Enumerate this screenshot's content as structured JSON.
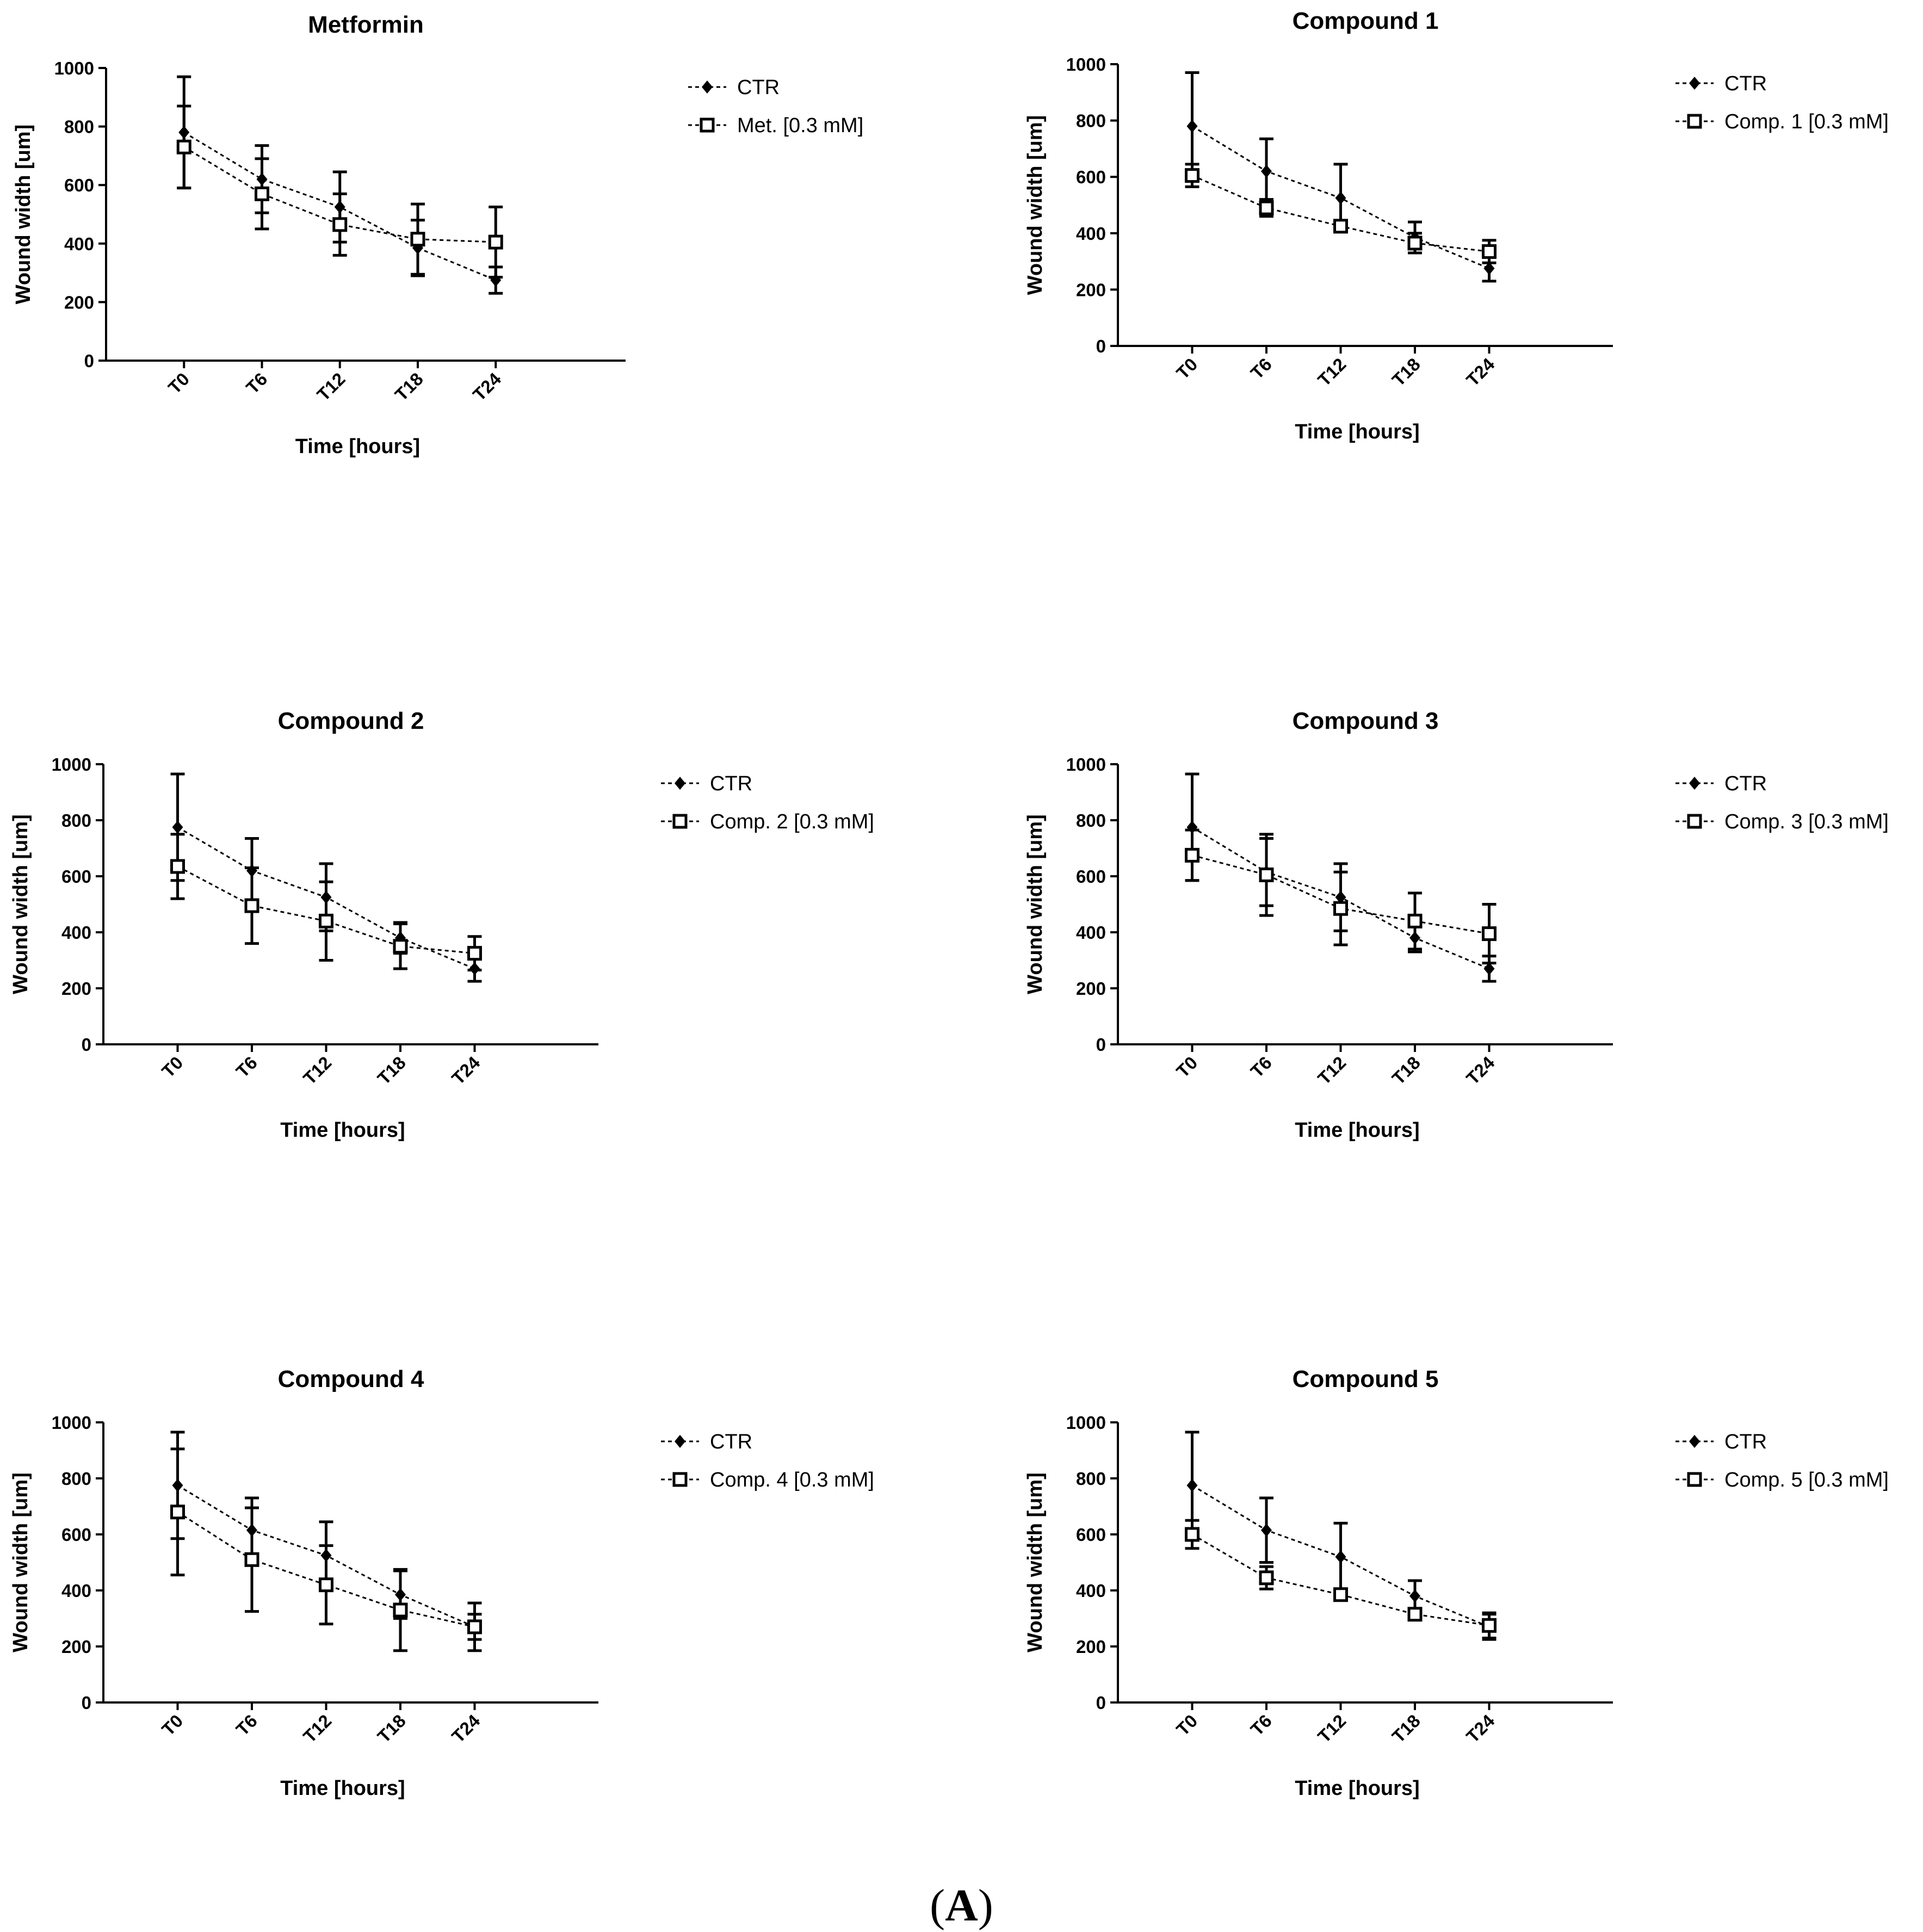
{
  "figure_label_prefix": "(",
  "figure_label_letter": "A",
  "figure_label_suffix": ")",
  "colors": {
    "line": "#000000",
    "background": "#ffffff"
  },
  "chart_data": [
    {
      "type": "line",
      "title": "Metformin",
      "xlabel": "Time [hours]",
      "ylabel": "Wound width [um]",
      "categories": [
        "T0",
        "T6",
        "T12",
        "T18",
        "T24"
      ],
      "ylim": [
        0,
        1000
      ],
      "yticks": [
        0,
        200,
        400,
        600,
        800,
        1000
      ],
      "grid": false,
      "legend": "right",
      "series": [
        {
          "name": "CTR",
          "marker": "diamond-filled",
          "values": [
            780,
            620,
            525,
            385,
            275
          ],
          "errors": [
            190,
            115,
            120,
            95,
            45
          ]
        },
        {
          "name": "Met. [0.3 mM]",
          "marker": "square-open",
          "values": [
            730,
            570,
            465,
            415,
            405
          ],
          "errors": [
            140,
            120,
            105,
            120,
            120
          ]
        }
      ]
    },
    {
      "type": "line",
      "title": "Compound 1",
      "xlabel": "Time [hours]",
      "ylabel": "Wound width [um]",
      "categories": [
        "T0",
        "T6",
        "T12",
        "T18",
        "T24"
      ],
      "ylim": [
        0,
        1000
      ],
      "yticks": [
        0,
        200,
        400,
        600,
        800,
        1000
      ],
      "grid": false,
      "legend": "right",
      "series": [
        {
          "name": "CTR",
          "marker": "diamond-filled",
          "values": [
            780,
            620,
            525,
            385,
            275
          ],
          "errors": [
            190,
            115,
            120,
            55,
            45
          ]
        },
        {
          "name": "Comp. 1 [0.3 mM]",
          "marker": "square-open",
          "values": [
            605,
            490,
            425,
            365,
            335
          ],
          "errors": [
            40,
            30,
            20,
            35,
            40
          ]
        }
      ]
    },
    {
      "type": "line",
      "title": "Compound 2",
      "xlabel": "Time [hours]",
      "ylabel": "Wound width [um]",
      "categories": [
        "T0",
        "T6",
        "T12",
        "T18",
        "T24"
      ],
      "ylim": [
        0,
        1000
      ],
      "yticks": [
        0,
        200,
        400,
        600,
        800,
        1000
      ],
      "grid": false,
      "legend": "right",
      "series": [
        {
          "name": "CTR",
          "marker": "diamond-filled",
          "values": [
            775,
            620,
            525,
            380,
            270
          ],
          "errors": [
            190,
            115,
            120,
            55,
            45
          ]
        },
        {
          "name": "Comp. 2 [0.3 mM]",
          "marker": "square-open",
          "values": [
            635,
            495,
            440,
            350,
            325
          ],
          "errors": [
            115,
            135,
            140,
            80,
            60
          ]
        }
      ]
    },
    {
      "type": "line",
      "title": "Compound 3",
      "xlabel": "Time [hours]",
      "ylabel": "Wound width [um]",
      "categories": [
        "T0",
        "T6",
        "T12",
        "T18",
        "T24"
      ],
      "ylim": [
        0,
        1000
      ],
      "yticks": [
        0,
        200,
        400,
        600,
        800,
        1000
      ],
      "grid": false,
      "legend": "right",
      "series": [
        {
          "name": "CTR",
          "marker": "diamond-filled",
          "values": [
            775,
            615,
            525,
            380,
            270
          ],
          "errors": [
            190,
            120,
            120,
            50,
            45
          ]
        },
        {
          "name": "Comp. 3 [0.3 mM]",
          "marker": "square-open",
          "values": [
            675,
            605,
            485,
            440,
            395
          ],
          "errors": [
            90,
            145,
            130,
            100,
            105
          ]
        }
      ]
    },
    {
      "type": "line",
      "title": "Compound 4",
      "xlabel": "Time [hours]",
      "ylabel": "Wound width [um]",
      "categories": [
        "T0",
        "T6",
        "T12",
        "T18",
        "T24"
      ],
      "ylim": [
        0,
        1000
      ],
      "yticks": [
        0,
        200,
        400,
        600,
        800,
        1000
      ],
      "grid": false,
      "legend": "right",
      "series": [
        {
          "name": "CTR",
          "marker": "diamond-filled",
          "values": [
            775,
            615,
            525,
            385,
            270
          ],
          "errors": [
            190,
            115,
            120,
            85,
            45
          ]
        },
        {
          "name": "Comp. 4 [0.3 mM]",
          "marker": "square-open",
          "values": [
            680,
            510,
            420,
            330,
            270
          ],
          "errors": [
            225,
            185,
            140,
            145,
            85
          ]
        }
      ]
    },
    {
      "type": "line",
      "title": "Compound 5",
      "xlabel": "Time [hours]",
      "ylabel": "Wound width [um]",
      "categories": [
        "T0",
        "T6",
        "T12",
        "T18",
        "T24"
      ],
      "ylim": [
        0,
        1000
      ],
      "yticks": [
        0,
        200,
        400,
        600,
        800,
        1000
      ],
      "grid": false,
      "legend": "right",
      "series": [
        {
          "name": "CTR",
          "marker": "diamond-filled",
          "values": [
            775,
            615,
            520,
            380,
            270
          ],
          "errors": [
            190,
            115,
            120,
            55,
            45
          ]
        },
        {
          "name": "Comp. 5 [0.3 mM]",
          "marker": "square-open",
          "values": [
            600,
            445,
            385,
            315,
            275
          ],
          "errors": [
            50,
            40,
            20,
            15,
            45
          ]
        }
      ]
    }
  ]
}
